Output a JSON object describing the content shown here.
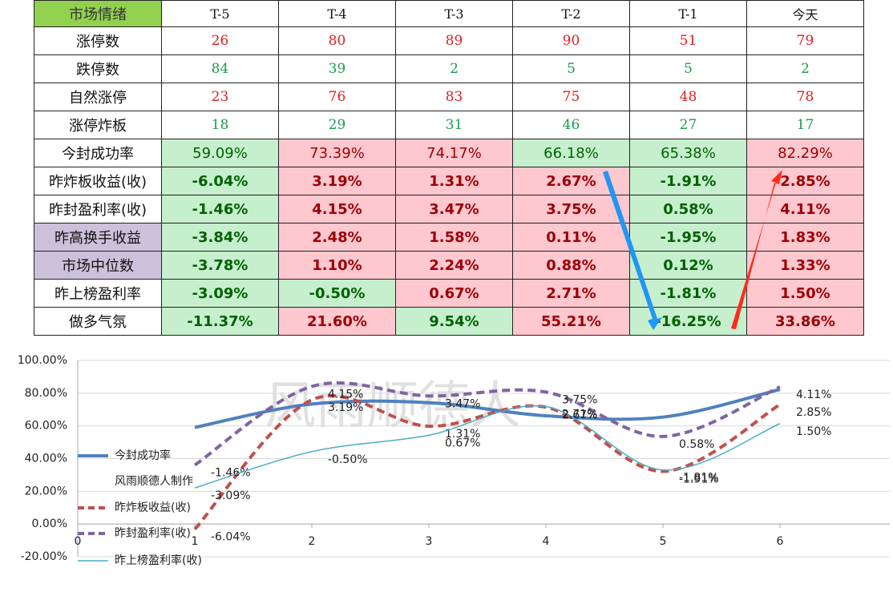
{
  "table": {
    "header": [
      "市场情绪",
      "T-5",
      "T-4",
      "T-3",
      "T-2",
      "T-1",
      "今天"
    ],
    "header_bg": "#92d050",
    "rows": [
      {
        "label": "涨停数",
        "values": [
          "26",
          "80",
          "89",
          "90",
          "51",
          "79"
        ],
        "color": "#e0201f"
      },
      {
        "label": "跌停数",
        "values": [
          "84",
          "39",
          "2",
          "5",
          "5",
          "2"
        ],
        "color": "#1a9e4e"
      },
      {
        "label": "自然涨停",
        "values": [
          "23",
          "76",
          "83",
          "75",
          "48",
          "78"
        ],
        "color": "#e0201f"
      },
      {
        "label": "涨停炸板",
        "values": [
          "18",
          "29",
          "31",
          "46",
          "27",
          "17"
        ],
        "color": "#1a9e4e"
      },
      {
        "label": "今封成功率",
        "values": [
          "59.09%",
          "73.39%",
          "74.17%",
          "66.18%",
          "65.38%",
          "82.29%"
        ],
        "fills": [
          "#c6efce",
          "#ffc7ce",
          "#ffc7ce",
          "#c6efce",
          "#c6efce",
          "#ffc7ce"
        ],
        "bold": false
      },
      {
        "label": "昨炸板收益(收)",
        "values": [
          "-6.04%",
          "3.19%",
          "1.31%",
          "2.67%",
          "-1.91%",
          "2.85%"
        ],
        "fills": [
          "#c6efce",
          "#ffc7ce",
          "#ffc7ce",
          "#ffc7ce",
          "#c6efce",
          "#ffc7ce"
        ],
        "bold": true
      },
      {
        "label": "昨封盈利率(收)",
        "values": [
          "-1.46%",
          "4.15%",
          "3.47%",
          "3.75%",
          "0.58%",
          "4.11%"
        ],
        "fills": [
          "#c6efce",
          "#ffc7ce",
          "#ffc7ce",
          "#ffc7ce",
          "#c6efce",
          "#ffc7ce"
        ],
        "bold": true
      },
      {
        "label": "昨高换手收益",
        "label_bg": "#ccc0da",
        "values": [
          "-3.84%",
          "2.48%",
          "1.58%",
          "0.11%",
          "-1.95%",
          "1.83%"
        ],
        "fills": [
          "#c6efce",
          "#ffc7ce",
          "#ffc7ce",
          "#ffc7ce",
          "#c6efce",
          "#ffc7ce"
        ],
        "bold": true
      },
      {
        "label": "市场中位数",
        "label_bg": "#ccc0da",
        "values": [
          "-3.78%",
          "1.10%",
          "2.24%",
          "0.88%",
          "0.12%",
          "1.33%"
        ],
        "fills": [
          "#c6efce",
          "#ffc7ce",
          "#ffc7ce",
          "#ffc7ce",
          "#c6efce",
          "#ffc7ce"
        ],
        "bold": true
      },
      {
        "label": "昨上榜盈利率",
        "values": [
          "-3.09%",
          "-0.50%",
          "0.67%",
          "2.71%",
          "-1.81%",
          "1.50%"
        ],
        "fills": [
          "#c6efce",
          "#c6efce",
          "#ffc7ce",
          "#ffc7ce",
          "#c6efce",
          "#ffc7ce"
        ],
        "bold": true
      },
      {
        "label": "做多气氛",
        "values": [
          "-11.37%",
          "21.60%",
          "9.54%",
          "55.21%",
          "-16.25%",
          "33.86%"
        ],
        "fills": [
          "#c6efce",
          "#ffc7ce",
          "#c6efce",
          "#ffc7ce",
          "#c6efce",
          "#ffc7ce"
        ],
        "bold": true
      }
    ]
  },
  "chart_data": {
    "type": "line",
    "watermark": "风雨顺德人",
    "legend_note": "风雨顺德人制作",
    "x": [
      1,
      2,
      3,
      4,
      5,
      6
    ],
    "xlim": [
      0,
      7
    ],
    "xticks": [
      0,
      1,
      2,
      3,
      4,
      5,
      6
    ],
    "ylim": [
      -20,
      100
    ],
    "yticks": [
      {
        "value": -20,
        "label": "-20.00%"
      },
      {
        "value": 0,
        "label": "0.00%"
      },
      {
        "value": 20,
        "label": "20.00%"
      },
      {
        "value": 40,
        "label": "40.00%"
      },
      {
        "value": 60,
        "label": "60.00%"
      },
      {
        "value": 80,
        "label": "80.00%"
      },
      {
        "value": 100,
        "label": "100.00%"
      }
    ],
    "y2lim": [
      -8,
      6
    ],
    "grid": true,
    "series": [
      {
        "name": "今封成功率",
        "color": "#4f81bd",
        "width": 4,
        "values": [
          59.09,
          73.39,
          74.17,
          66.18,
          65.38,
          82.29
        ]
      },
      {
        "name": "昨炸板收益(收)",
        "color": "#c0504d",
        "width": 4,
        "dashed": true,
        "axis": "y2",
        "values": [
          -6.04,
          3.19,
          1.31,
          2.67,
          -1.91,
          2.85
        ],
        "value_labels": [
          "-6.04%",
          "3.19%",
          "1.31%",
          "2.67%",
          "-1.91%",
          "2.85%"
        ]
      },
      {
        "name": "昨封盈利率(收)",
        "color": "#8064a2",
        "width": 4,
        "dashed": true,
        "axis": "y2",
        "values": [
          -1.46,
          4.15,
          3.47,
          3.75,
          0.58,
          4.11
        ],
        "value_labels": [
          "-1.46%",
          "4.15%",
          "3.47%",
          "3.75%",
          "0.58%",
          "4.11%"
        ]
      },
      {
        "name": "昨上榜盈利率(收)",
        "color": "#4bacc6",
        "width": 1.5,
        "axis": "y2",
        "values": [
          -3.09,
          -0.5,
          0.67,
          2.71,
          -1.81,
          1.5
        ],
        "value_labels": [
          "-3.09%",
          "-0.50%",
          "0.67%",
          "2.71%",
          "-1.81%",
          "1.50%"
        ]
      }
    ]
  }
}
